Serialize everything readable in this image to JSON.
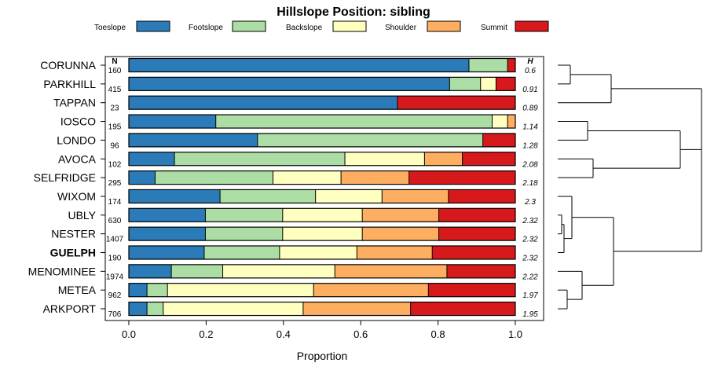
{
  "chart_data": {
    "type": "bar",
    "stacked": true,
    "orientation": "horizontal",
    "title": "Hillslope Position: sibling",
    "xlabel": "Proportion",
    "xlim": [
      0,
      1
    ],
    "xticks": [
      "0.0",
      "0.2",
      "0.4",
      "0.6",
      "0.8",
      "1.0"
    ],
    "n_header": "N",
    "h_header": "H",
    "highlight": "GUELPH",
    "legend": [
      {
        "name": "Toeslope",
        "color": "#2b7bb9"
      },
      {
        "name": "Footslope",
        "color": "#abdda4"
      },
      {
        "name": "Backslope",
        "color": "#ffffbf"
      },
      {
        "name": "Shoulder",
        "color": "#fdae61"
      },
      {
        "name": "Summit",
        "color": "#d7191c"
      }
    ],
    "rows": [
      {
        "label": "CORUNNA",
        "n": "160",
        "h": "0.6",
        "values": [
          0.88,
          0.1,
          0.0,
          0.0,
          0.02
        ]
      },
      {
        "label": "PARKHILL",
        "n": "415",
        "h": "0.91",
        "values": [
          0.83,
          0.08,
          0.04,
          0.0,
          0.05
        ]
      },
      {
        "label": "TAPPAN",
        "n": "23",
        "h": "0.89",
        "values": [
          0.695,
          0.0,
          0.0,
          0.0,
          0.305
        ]
      },
      {
        "label": "IOSCO",
        "n": "195",
        "h": "1.14",
        "values": [
          0.225,
          0.715,
          0.04,
          0.02,
          0.0
        ]
      },
      {
        "label": "LONDO",
        "n": "96",
        "h": "1.28",
        "values": [
          0.333,
          0.583,
          0.0,
          0.0,
          0.084
        ]
      },
      {
        "label": "AVOCA",
        "n": "102",
        "h": "2.08",
        "values": [
          0.118,
          0.441,
          0.206,
          0.098,
          0.137
        ]
      },
      {
        "label": "SELFRIDGE",
        "n": "295",
        "h": "2.18",
        "values": [
          0.068,
          0.305,
          0.176,
          0.176,
          0.275
        ]
      },
      {
        "label": "WIXOM",
        "n": "174",
        "h": "2.3",
        "values": [
          0.236,
          0.247,
          0.172,
          0.172,
          0.173
        ]
      },
      {
        "label": "UBLY",
        "n": "630",
        "h": "2.32",
        "values": [
          0.198,
          0.2,
          0.206,
          0.198,
          0.198
        ]
      },
      {
        "label": "NESTER",
        "n": "1407",
        "h": "2.32",
        "values": [
          0.198,
          0.2,
          0.206,
          0.198,
          0.198
        ]
      },
      {
        "label": "GUELPH",
        "n": "190",
        "h": "2.32",
        "values": [
          0.195,
          0.195,
          0.2,
          0.195,
          0.215
        ]
      },
      {
        "label": "MENOMINEE",
        "n": "1974",
        "h": "2.22",
        "values": [
          0.11,
          0.133,
          0.29,
          0.29,
          0.177
        ]
      },
      {
        "label": "METEA",
        "n": "962",
        "h": "1.97",
        "values": [
          0.047,
          0.053,
          0.378,
          0.297,
          0.225
        ]
      },
      {
        "label": "ARKPORT",
        "n": "706",
        "h": "1.95",
        "values": [
          0.047,
          0.042,
          0.362,
          0.278,
          0.271
        ]
      }
    ]
  }
}
